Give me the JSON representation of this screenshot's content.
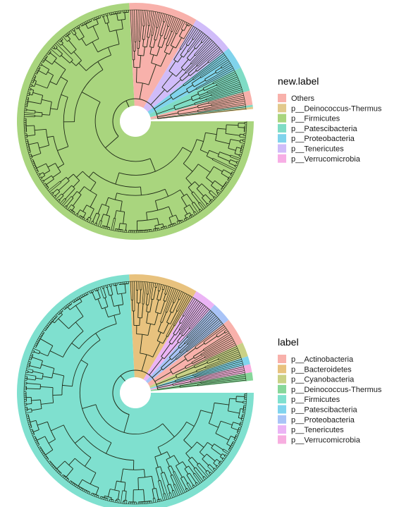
{
  "chart_data": [
    {
      "type": "circular-tree",
      "legend": {
        "title": "new.label",
        "entries": [
          {
            "name": "Others",
            "color": "#F8B1AB"
          },
          {
            "name": "p__Deinococcus-Thermus",
            "color": "#E2C98C"
          },
          {
            "name": "p__Firmicutes",
            "color": "#A9D57E"
          },
          {
            "name": "p__Patescibacteria",
            "color": "#7FDCC5"
          },
          {
            "name": "p__Proteobacteria",
            "color": "#80D3EC"
          },
          {
            "name": "p__Tenericutes",
            "color": "#D0BCF9"
          },
          {
            "name": "p__Verrucomicrobia",
            "color": "#F7AEE5"
          }
        ]
      },
      "sectors": [
        {
          "name": "p__Firmicutes",
          "start": 0,
          "end": 267
        },
        {
          "name": "Others",
          "start": 267,
          "end": 301
        },
        {
          "name": "p__Tenericutes",
          "start": 301,
          "end": 322
        },
        {
          "name": "p__Proteobacteria",
          "start": 322,
          "end": 333
        },
        {
          "name": "p__Patescibacteria",
          "start": 333,
          "end": 345
        },
        {
          "name": "Others",
          "start": 345,
          "end": 352
        },
        {
          "name": "p__Patescibacteria",
          "start": 352,
          "end": 353
        },
        {
          "name": "p__Deinococcus-Thermus",
          "start": 353,
          "end": 354
        }
      ]
    },
    {
      "type": "circular-tree",
      "legend": {
        "title": "label",
        "entries": [
          {
            "name": "p__Actinobacteria",
            "color": "#F8B1AB"
          },
          {
            "name": "p__Bacteroidetes",
            "color": "#E8C27E"
          },
          {
            "name": "p__Cyanobacteria",
            "color": "#C9D186"
          },
          {
            "name": "p__Deinococcus-Thermus",
            "color": "#87D79A"
          },
          {
            "name": "p__Firmicutes",
            "color": "#7FE0CF"
          },
          {
            "name": "p__Patescibacteria",
            "color": "#80D4EE"
          },
          {
            "name": "p__Proteobacteria",
            "color": "#A9C4F7"
          },
          {
            "name": "p__Tenericutes",
            "color": "#EBB4F5"
          },
          {
            "name": "p__Verrucomicrobia",
            "color": "#F7AEE0"
          }
        ]
      },
      "sectors": [
        {
          "name": "p__Firmicutes",
          "start": 0,
          "end": 267
        },
        {
          "name": "p__Bacteroidetes",
          "start": 267,
          "end": 301
        },
        {
          "name": "p__Tenericutes",
          "start": 301,
          "end": 312
        },
        {
          "name": "p__Proteobacteria",
          "start": 312,
          "end": 322
        },
        {
          "name": "p__Actinobacteria",
          "start": 322,
          "end": 335
        },
        {
          "name": "p__Cyanobacteria",
          "start": 335,
          "end": 342
        },
        {
          "name": "p__Patescibacteria",
          "start": 342,
          "end": 346
        },
        {
          "name": "p__Verrucomicrobia",
          "start": 346,
          "end": 350
        },
        {
          "name": "p__Deinococcus-Thermus",
          "start": 350,
          "end": 354
        }
      ]
    }
  ]
}
